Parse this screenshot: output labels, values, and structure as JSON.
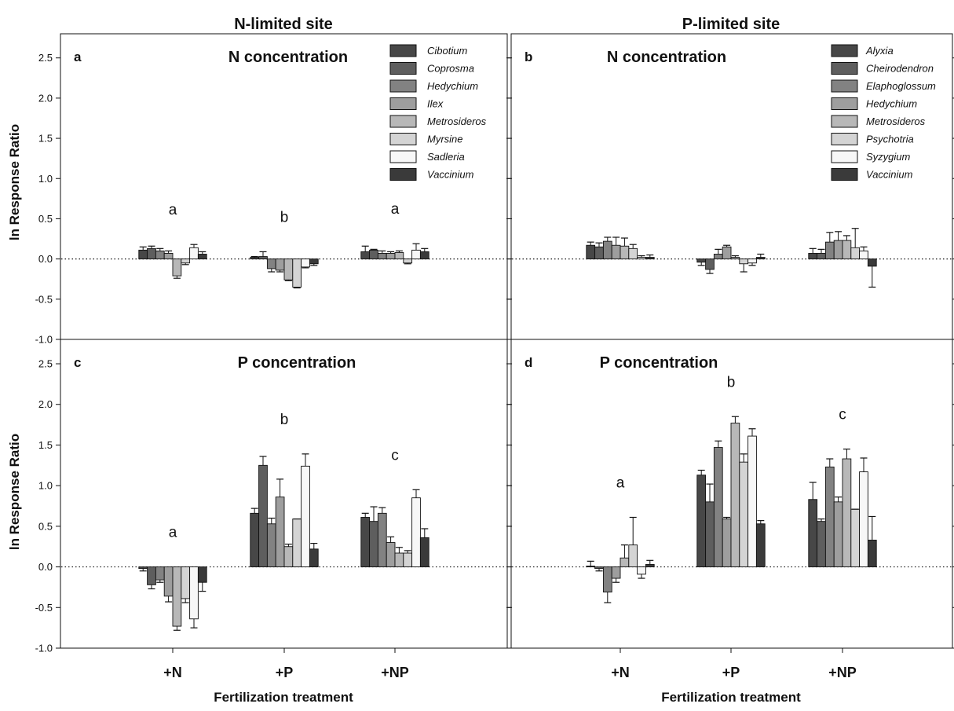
{
  "figure": {
    "site_titles": [
      "N-limited site",
      "P-limited site"
    ],
    "y_axis_label": "ln Response Ratio",
    "x_axis_label": "Fertilization treatment"
  },
  "chart_data": [
    {
      "panel": "a",
      "type": "bar",
      "title": "N concentration",
      "ylim": [
        -1.0,
        2.8
      ],
      "yticks": [
        "-1.0",
        "-0.5",
        "0.0",
        "0.5",
        "1.0",
        "1.5",
        "2.0",
        "2.5"
      ],
      "categories": [
        "+N",
        "+P",
        "+NP"
      ],
      "significance": [
        "a",
        "b",
        "a"
      ],
      "series": [
        {
          "name": "Cibotium",
          "color": "#474747",
          "values": [
            0.11,
            0.02,
            0.09
          ],
          "errors": [
            0.04,
            0.01,
            0.07
          ]
        },
        {
          "name": "Coprosma",
          "color": "#5e5e5e",
          "values": [
            0.13,
            0.03,
            0.11
          ],
          "errors": [
            0.03,
            0.06,
            0.01
          ]
        },
        {
          "name": "Hedychium",
          "color": "#828282",
          "values": [
            0.1,
            -0.12,
            0.07
          ],
          "errors": [
            0.03,
            0.04,
            0.03
          ]
        },
        {
          "name": "Ilex",
          "color": "#9e9e9e",
          "values": [
            0.07,
            -0.14,
            0.07
          ],
          "errors": [
            0.03,
            0.02,
            0.02
          ]
        },
        {
          "name": "Metrosideros",
          "color": "#b8b8b8",
          "values": [
            -0.21,
            -0.26,
            0.08
          ],
          "errors": [
            0.03,
            0.01,
            0.02
          ]
        },
        {
          "name": "Myrsine",
          "color": "#d4d4d4",
          "values": [
            -0.05,
            -0.35,
            -0.05
          ],
          "errors": [
            0.02,
            0.01,
            0.01
          ]
        },
        {
          "name": "Sadleria",
          "color": "#f7f7f7",
          "values": [
            0.14,
            -0.1,
            0.11
          ],
          "errors": [
            0.04,
            0.01,
            0.08
          ]
        },
        {
          "name": "Vaccinium",
          "color": "#3a3a3a",
          "values": [
            0.06,
            -0.06,
            0.09
          ],
          "errors": [
            0.03,
            0.02,
            0.04
          ]
        }
      ]
    },
    {
      "panel": "b",
      "type": "bar",
      "title": "N concentration",
      "ylim": [
        -1.0,
        2.8
      ],
      "yticks": [
        "-1.0",
        "-0.5",
        "0.0",
        "0.5",
        "1.0",
        "1.5",
        "2.0",
        "2.5"
      ],
      "categories": [
        "+N",
        "+P",
        "+NP"
      ],
      "significance": [
        "",
        "",
        ""
      ],
      "series": [
        {
          "name": "Alyxia",
          "color": "#474747",
          "values": [
            0.17,
            -0.04,
            0.07
          ],
          "errors": [
            0.04,
            0.04,
            0.06
          ]
        },
        {
          "name": "Cheirodendron",
          "color": "#5e5e5e",
          "values": [
            0.15,
            -0.13,
            0.07
          ],
          "errors": [
            0.05,
            0.05,
            0.05
          ]
        },
        {
          "name": "Elaphoglossum",
          "color": "#828282",
          "values": [
            0.22,
            0.06,
            0.21
          ],
          "errors": [
            0.05,
            0.06,
            0.12
          ]
        },
        {
          "name": "Hedychium",
          "color": "#9e9e9e",
          "values": [
            0.17,
            0.15,
            0.23
          ],
          "errors": [
            0.1,
            0.02,
            0.11
          ]
        },
        {
          "name": "Metrosideros",
          "color": "#b8b8b8",
          "values": [
            0.16,
            0.02,
            0.23
          ],
          "errors": [
            0.1,
            0.02,
            0.06
          ]
        },
        {
          "name": "Psychotria",
          "color": "#d4d4d4",
          "values": [
            0.13,
            -0.06,
            0.14
          ],
          "errors": [
            0.05,
            0.1,
            0.24
          ]
        },
        {
          "name": "Syzygium",
          "color": "#f7f7f7",
          "values": [
            0.02,
            -0.05,
            0.1
          ],
          "errors": [
            0.02,
            0.03,
            0.05
          ]
        },
        {
          "name": "Vaccinium",
          "color": "#3a3a3a",
          "values": [
            0.02,
            0.02,
            -0.09
          ],
          "errors": [
            0.03,
            0.04,
            0.26
          ]
        }
      ]
    },
    {
      "panel": "c",
      "type": "bar",
      "title": "P concentration",
      "ylim": [
        -1.0,
        2.8
      ],
      "yticks": [
        "-1.0",
        "-0.5",
        "0.0",
        "0.5",
        "1.0",
        "1.5",
        "2.0",
        "2.5"
      ],
      "categories": [
        "+N",
        "+P",
        "+NP"
      ],
      "significance": [
        "a",
        "b",
        "c"
      ],
      "series": [
        {
          "name": "Cibotium",
          "color": "#474747",
          "values": [
            -0.02,
            0.66,
            0.61
          ],
          "errors": [
            0.03,
            0.06,
            0.05
          ]
        },
        {
          "name": "Coprosma",
          "color": "#5e5e5e",
          "values": [
            -0.22,
            1.25,
            0.56
          ],
          "errors": [
            0.05,
            0.11,
            0.18
          ]
        },
        {
          "name": "Hedychium",
          "color": "#828282",
          "values": [
            -0.16,
            0.53,
            0.66
          ],
          "errors": [
            0.03,
            0.07,
            0.07
          ]
        },
        {
          "name": "Ilex",
          "color": "#9e9e9e",
          "values": [
            -0.36,
            0.86,
            0.3
          ],
          "errors": [
            0.07,
            0.22,
            0.07
          ]
        },
        {
          "name": "Metrosideros",
          "color": "#b8b8b8",
          "values": [
            -0.73,
            0.25,
            0.17
          ],
          "errors": [
            0.05,
            0.03,
            0.07
          ]
        },
        {
          "name": "Myrsine",
          "color": "#d4d4d4",
          "values": [
            -0.39,
            0.59,
            0.17
          ],
          "errors": [
            0.05,
            0.0,
            0.03
          ]
        },
        {
          "name": "Sadleria",
          "color": "#f7f7f7",
          "values": [
            -0.64,
            1.24,
            0.85
          ],
          "errors": [
            0.11,
            0.15,
            0.1
          ]
        },
        {
          "name": "Vaccinium",
          "color": "#3a3a3a",
          "values": [
            -0.19,
            0.22,
            0.36
          ],
          "errors": [
            0.11,
            0.07,
            0.11
          ]
        }
      ]
    },
    {
      "panel": "d",
      "type": "bar",
      "title": "P concentration",
      "ylim": [
        -1.0,
        2.8
      ],
      "yticks": [
        "-1.0",
        "-0.5",
        "0.0",
        "0.5",
        "1.0",
        "1.5",
        "2.0",
        "2.5"
      ],
      "categories": [
        "+N",
        "+P",
        "+NP"
      ],
      "significance": [
        "a",
        "b",
        "c"
      ],
      "series": [
        {
          "name": "Alyxia",
          "color": "#474747",
          "values": [
            0.01,
            1.13,
            0.83
          ],
          "errors": [
            0.06,
            0.06,
            0.21
          ]
        },
        {
          "name": "Cheirodendron",
          "color": "#5e5e5e",
          "values": [
            -0.02,
            0.8,
            0.56
          ],
          "errors": [
            0.03,
            0.22,
            0.03
          ]
        },
        {
          "name": "Elaphoglossum",
          "color": "#828282",
          "values": [
            -0.31,
            1.47,
            1.23
          ],
          "errors": [
            0.13,
            0.08,
            0.1
          ]
        },
        {
          "name": "Hedychium",
          "color": "#9e9e9e",
          "values": [
            -0.14,
            0.59,
            0.8
          ],
          "errors": [
            0.05,
            0.02,
            0.06
          ]
        },
        {
          "name": "Metrosideros",
          "color": "#b8b8b8",
          "values": [
            0.11,
            1.77,
            1.33
          ],
          "errors": [
            0.16,
            0.08,
            0.12
          ]
        },
        {
          "name": "Psychotria",
          "color": "#d4d4d4",
          "values": [
            0.27,
            1.29,
            0.71
          ],
          "errors": [
            0.34,
            0.1,
            0.0
          ]
        },
        {
          "name": "Syzygium",
          "color": "#f7f7f7",
          "values": [
            -0.09,
            1.61,
            1.17
          ],
          "errors": [
            0.05,
            0.09,
            0.17
          ]
        },
        {
          "name": "Vaccinium",
          "color": "#3a3a3a",
          "values": [
            0.03,
            0.53,
            0.33
          ],
          "errors": [
            0.05,
            0.04,
            0.29
          ]
        }
      ]
    }
  ]
}
